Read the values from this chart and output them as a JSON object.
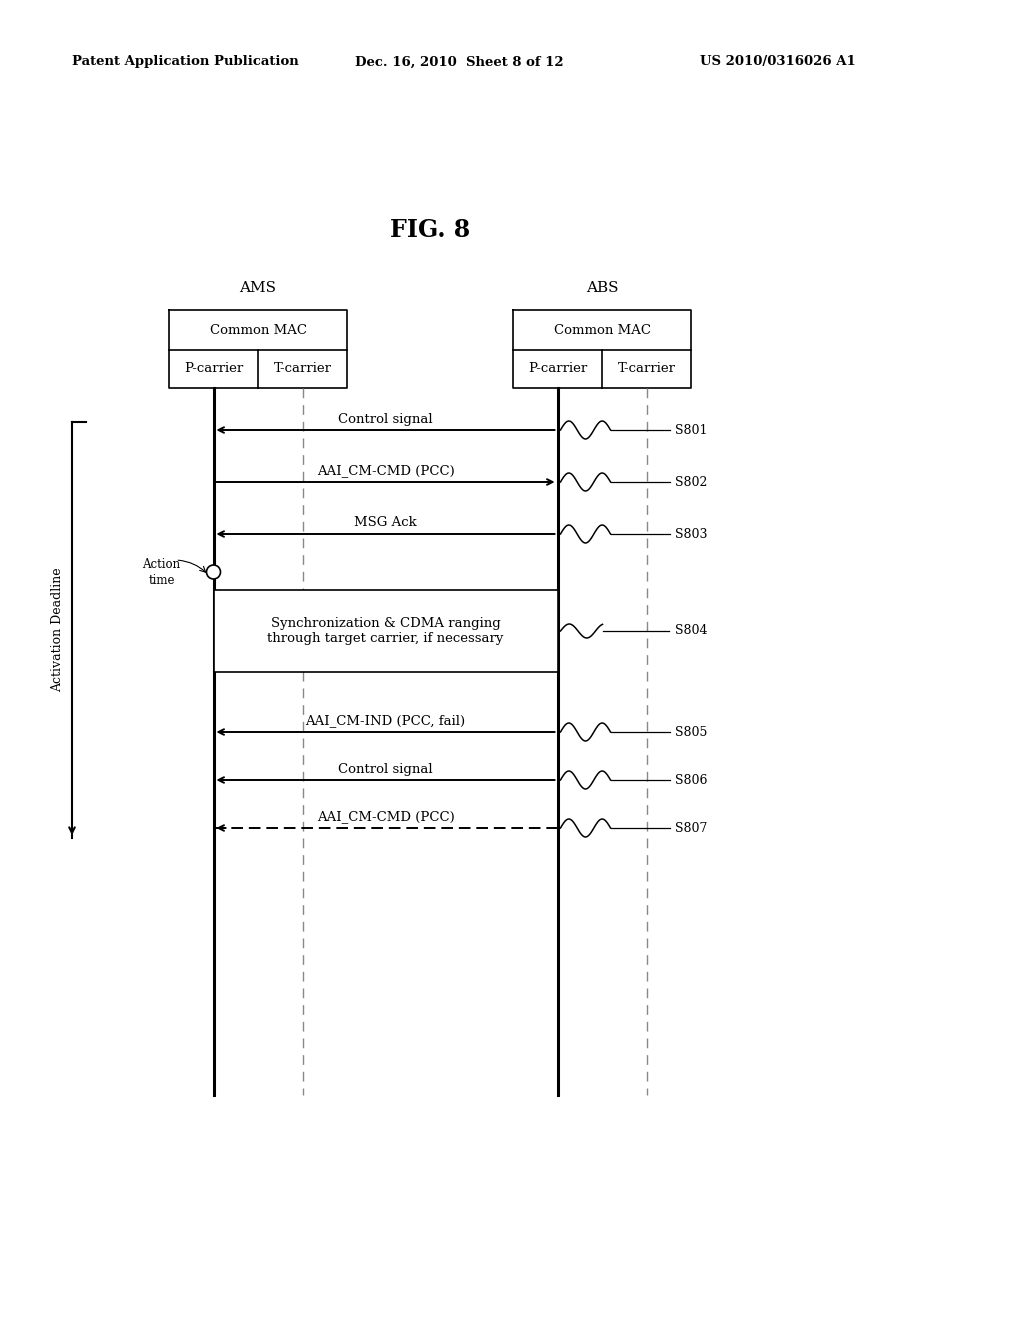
{
  "title": "FIG. 8",
  "header_left": "Patent Application Publication",
  "header_mid": "Dec. 16, 2010  Sheet 8 of 12",
  "header_right": "US 2010/0316026 A1",
  "ams_label": "AMS",
  "abs_label": "ABS",
  "common_mac": "Common MAC",
  "p_carrier": "P-carrier",
  "t_carrier": "T-carrier",
  "activation_deadline": "Activation Deadline",
  "action_time": "Action\ntime",
  "sync_box_text": "Synchronization & CDMA ranging\nthrough target carrier, if necessary",
  "messages": [
    {
      "label": "Control signal",
      "dir": "left",
      "style": "solid",
      "step": "S801"
    },
    {
      "label": "AAI_CM-CMD (PCC)",
      "dir": "right",
      "style": "solid",
      "step": "S802"
    },
    {
      "label": "MSG Ack",
      "dir": "left",
      "style": "solid",
      "step": "S803"
    },
    {
      "label": "AAI_CM-IND (PCC, fail)",
      "dir": "left",
      "style": "solid",
      "step": "S805"
    },
    {
      "label": "Control signal",
      "dir": "left",
      "style": "solid",
      "step": "S806"
    },
    {
      "label": "AAI_CM-CMD (PCC)",
      "dir": "left",
      "style": "dashed",
      "step": "S807"
    }
  ],
  "bg_color": "#ffffff",
  "line_color": "#000000"
}
